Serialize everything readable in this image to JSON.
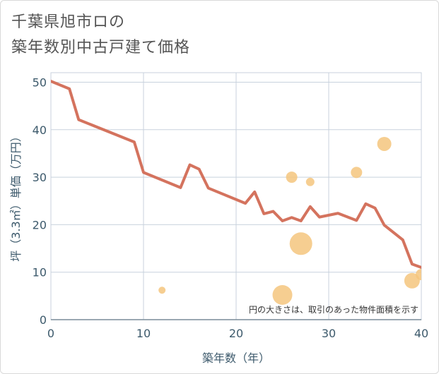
{
  "title_line1": "千葉県旭市ロの",
  "title_line2": "築年数別中古戸建て価格",
  "chart_data": {
    "type": "line",
    "title": "千葉県旭市ロの 築年数別中古戸建て価格",
    "xlabel": "築年数（年）",
    "ylabel": "坪（3.3㎡）単価（万円）",
    "xlim": [
      0,
      40
    ],
    "ylim": [
      0,
      52
    ],
    "x_ticks": [
      0,
      10,
      20,
      30,
      40
    ],
    "y_ticks": [
      0,
      10,
      20,
      30,
      40,
      50
    ],
    "grid": true,
    "note": "円の大きさは、取引のあった物件面積を示す",
    "line_color": "#d4735e",
    "bubble_color": "#f5c57e",
    "series": [
      {
        "type": "line",
        "x": [
          0,
          2,
          3,
          9,
          10,
          14,
          15,
          16,
          17,
          21,
          22,
          23,
          24,
          25,
          26,
          27,
          28,
          29,
          31,
          33,
          34,
          35,
          36,
          38,
          39,
          40
        ],
        "y": [
          50.2,
          48.6,
          42.1,
          37.4,
          31.0,
          27.8,
          32.6,
          31.7,
          27.7,
          24.5,
          26.9,
          22.3,
          22.8,
          20.8,
          21.5,
          20.8,
          23.8,
          21.6,
          22.4,
          20.9,
          24.4,
          23.5,
          19.9,
          16.8,
          11.7,
          11.0
        ]
      },
      {
        "type": "scatter",
        "points": [
          {
            "x": 12,
            "y": 6.2,
            "size": 5
          },
          {
            "x": 25,
            "y": 5.2,
            "size": 14
          },
          {
            "x": 26,
            "y": 30.0,
            "size": 8
          },
          {
            "x": 27,
            "y": 16.0,
            "size": 16
          },
          {
            "x": 28,
            "y": 29.0,
            "size": 6
          },
          {
            "x": 33,
            "y": 31.0,
            "size": 8
          },
          {
            "x": 36,
            "y": 37.0,
            "size": 10
          },
          {
            "x": 39,
            "y": 8.2,
            "size": 11
          },
          {
            "x": 40,
            "y": 9.5,
            "size": 8
          }
        ]
      }
    ]
  }
}
